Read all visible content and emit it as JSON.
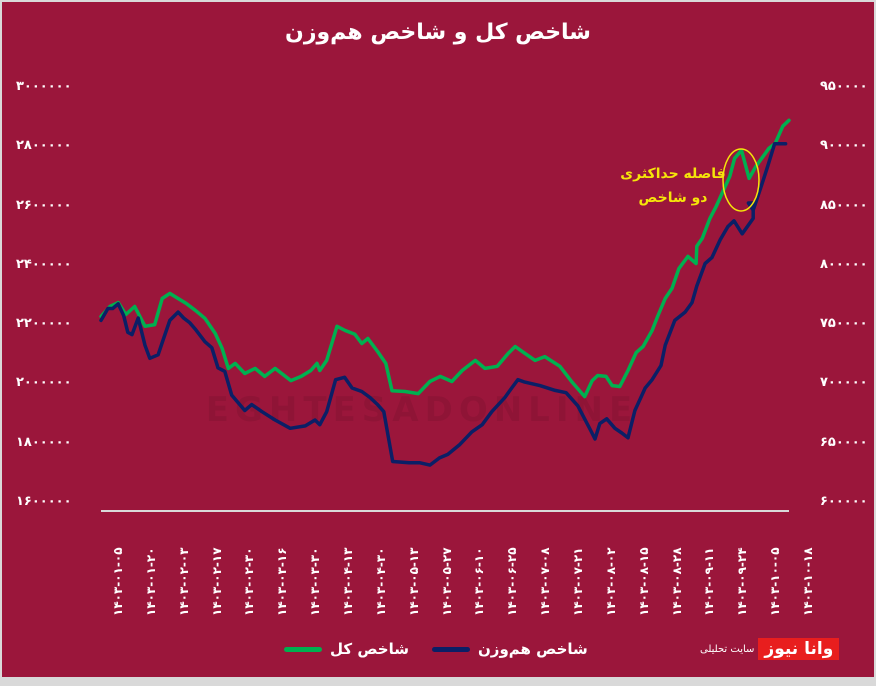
{
  "title": "شاخص کل و شاخص هم‌وزن",
  "annotation": {
    "line1": "فاصله حداکثری",
    "line2": "دو شاخص",
    "circle_color": "#f5e50a"
  },
  "legend": {
    "total_label": "شاخص کل",
    "equal_label": "شاخص هم‌وزن"
  },
  "logo": {
    "mark": "وانا نیوز",
    "subtitle": "سایت تحلیلی"
  },
  "watermark": "EGHTESADONLINE",
  "colors": {
    "background": "#9b163b",
    "total_index": "#00b050",
    "equal_weight_index": "#0b1f66",
    "axis_line": "#d9d9d9",
    "text": "#ffffff"
  },
  "left_axis_ticks": [
    "۳۰۰۰۰۰۰",
    "۲۸۰۰۰۰۰",
    "۲۶۰۰۰۰۰",
    "۲۴۰۰۰۰۰",
    "۲۲۰۰۰۰۰",
    "۲۰۰۰۰۰۰",
    "۱۸۰۰۰۰۰",
    "۱۶۰۰۰۰۰"
  ],
  "right_axis_ticks": [
    "۹۵۰۰۰۰",
    "۹۰۰۰۰۰",
    "۸۵۰۰۰۰",
    "۸۰۰۰۰۰",
    "۷۵۰۰۰۰",
    "۷۰۰۰۰۰",
    "۶۵۰۰۰۰",
    "۶۰۰۰۰۰"
  ],
  "x_ticks": [
    "۱۴۰۳-۰۱-۰۵",
    "۱۴۰۳-۰۱-۲۰",
    "۱۴۰۳-۰۲-۰۳",
    "۱۴۰۳-۰۲-۱۷",
    "۱۴۰۳-۰۲-۳۰",
    "۱۴۰۳-۰۳-۱۶",
    "۱۴۰۳-۰۳-۳۰",
    "۱۴۰۳-۰۴-۱۳",
    "۱۴۰۳-۰۴-۳۰",
    "۱۴۰۳-۰۵-۱۳",
    "۱۴۰۳-۰۵-۲۷",
    "۱۴۰۳-۰۶-۱۰",
    "۱۴۰۳-۰۶-۲۵",
    "۱۴۰۳-۰۷-۰۸",
    "۱۴۰۳-۰۷-۲۱",
    "۱۴۰۳-۰۸-۰۲",
    "۱۴۰۳-۰۸-۱۵",
    "۱۴۰۳-۰۸-۲۸",
    "۱۴۰۳-۰۹-۱۱",
    "۱۴۰۳-۰۹-۲۴",
    "۱۴۰۳-۱۰-۰۵",
    "۱۴۰۳-۱۰-۱۸"
  ],
  "chart_data": {
    "type": "line",
    "title": "شاخص کل و شاخص هم‌وزن",
    "xlabel": "",
    "ylabel_left": "شاخص کل",
    "ylabel_right": "شاخص هم‌وزن",
    "ylim_left": [
      1600000,
      3000000
    ],
    "ylim_right": [
      600000,
      950000
    ],
    "grid": false,
    "legend_position": "bottom",
    "categories": [
      "1403-01-05",
      "1403-01-20",
      "1403-02-03",
      "1403-02-17",
      "1403-02-30",
      "1403-03-16",
      "1403-03-30",
      "1403-04-13",
      "1403-04-30",
      "1403-05-13",
      "1403-05-27",
      "1403-06-10",
      "1403-06-25",
      "1403-07-08",
      "1403-07-21",
      "1403-08-02",
      "1403-08-15",
      "1403-08-28",
      "1403-09-11",
      "1403-09-24",
      "1403-10-05",
      "1403-10-18"
    ],
    "series": [
      {
        "name": "شاخص کل",
        "axis": "left",
        "color": "#00b050",
        "x_frac": [
          0,
          0.013,
          0.025,
          0.036,
          0.049,
          0.064,
          0.078,
          0.089,
          0.1,
          0.112,
          0.124,
          0.137,
          0.151,
          0.166,
          0.176,
          0.185,
          0.195,
          0.209,
          0.224,
          0.238,
          0.253,
          0.276,
          0.291,
          0.305,
          0.314,
          0.318,
          0.328,
          0.343,
          0.355,
          0.369,
          0.379,
          0.388,
          0.402,
          0.414,
          0.423,
          0.442,
          0.461,
          0.478,
          0.493,
          0.51,
          0.525,
          0.544,
          0.558,
          0.576,
          0.592,
          0.602,
          0.616,
          0.631,
          0.645,
          0.667,
          0.685,
          0.703,
          0.714,
          0.722,
          0.734,
          0.743,
          0.754,
          0.766,
          0.778,
          0.788,
          0.801,
          0.809,
          0.82,
          0.83,
          0.84,
          0.853,
          0.865,
          0.866,
          0.874,
          0.885,
          0.894,
          0.902,
          0.914,
          0.921,
          0.931,
          0.942,
          0.952,
          0.971,
          0.98,
          0.991,
          1.0,
          1.0
        ],
        "values": [
          2229000,
          2263000,
          2276000,
          2236000,
          2263000,
          2196000,
          2202000,
          2290000,
          2307000,
          2290000,
          2273000,
          2250000,
          2223000,
          2172000,
          2122000,
          2054000,
          2071000,
          2037000,
          2054000,
          2027000,
          2054000,
          2013000,
          2027000,
          2047000,
          2071000,
          2047000,
          2081000,
          2196000,
          2182000,
          2169000,
          2138000,
          2155000,
          2111000,
          2071000,
          1979000,
          1976000,
          1969000,
          2010000,
          2027000,
          2010000,
          2047000,
          2081000,
          2054000,
          2061000,
          2105000,
          2128000,
          2105000,
          2081000,
          2094000,
          2061000,
          2007000,
          1959000,
          2013000,
          2030000,
          2027000,
          1996000,
          1993000,
          2047000,
          2108000,
          2128000,
          2182000,
          2229000,
          2290000,
          2324000,
          2391000,
          2432000,
          2408000,
          2466000,
          2493000,
          2560000,
          2600000,
          2641000,
          2702000,
          2763000,
          2790000,
          2695000,
          2736000,
          2797000,
          2813000,
          2871000,
          2891000,
          2891000
        ]
      },
      {
        "name": "شاخص هم‌وزن",
        "axis": "right",
        "color": "#0b1f66",
        "x_frac": [
          0,
          0.01,
          0.017,
          0.025,
          0.033,
          0.039,
          0.045,
          0.054,
          0.064,
          0.071,
          0.083,
          0.09,
          0.1,
          0.112,
          0.12,
          0.129,
          0.138,
          0.151,
          0.161,
          0.17,
          0.18,
          0.19,
          0.209,
          0.219,
          0.234,
          0.253,
          0.275,
          0.297,
          0.311,
          0.318,
          0.328,
          0.341,
          0.354,
          0.365,
          0.379,
          0.391,
          0.402,
          0.411,
          0.424,
          0.448,
          0.463,
          0.478,
          0.492,
          0.504,
          0.521,
          0.539,
          0.554,
          0.568,
          0.587,
          0.597,
          0.606,
          0.616,
          0.638,
          0.66,
          0.676,
          0.693,
          0.711,
          0.718,
          0.725,
          0.735,
          0.747,
          0.757,
          0.766,
          0.776,
          0.791,
          0.801,
          0.814,
          0.82,
          0.834,
          0.849,
          0.859,
          0.866,
          0.878,
          0.888,
          0.9,
          0.911,
          0.92,
          0.932,
          0.948,
          0.948,
          0.941,
          0.948,
          0.959,
          0.969,
          0.979,
          0.989,
          0.995
        ],
        "values": [
          754000,
          764000,
          764000,
          768000,
          758000,
          744000,
          742000,
          756000,
          733000,
          722000,
          725000,
          737000,
          754000,
          761000,
          756000,
          752000,
          746000,
          736000,
          731000,
          714000,
          711000,
          691000,
          678000,
          683000,
          677000,
          670000,
          663000,
          665000,
          670000,
          666000,
          677000,
          704000,
          706000,
          697000,
          694000,
          689000,
          683000,
          677000,
          635000,
          634000,
          634000,
          632000,
          638000,
          641000,
          649000,
          660000,
          666000,
          677000,
          689000,
          697000,
          704000,
          702000,
          699000,
          695000,
          693000,
          682000,
          662000,
          654000,
          667000,
          671000,
          663000,
          659000,
          655000,
          678000,
          697000,
          704000,
          716000,
          733000,
          754000,
          761000,
          769000,
          783000,
          802000,
          807000,
          822000,
          833000,
          838000,
          827000,
          840000,
          853000,
          853000,
          847000,
          866000,
          884000,
          903000,
          903000,
          903000
        ]
      }
    ]
  }
}
